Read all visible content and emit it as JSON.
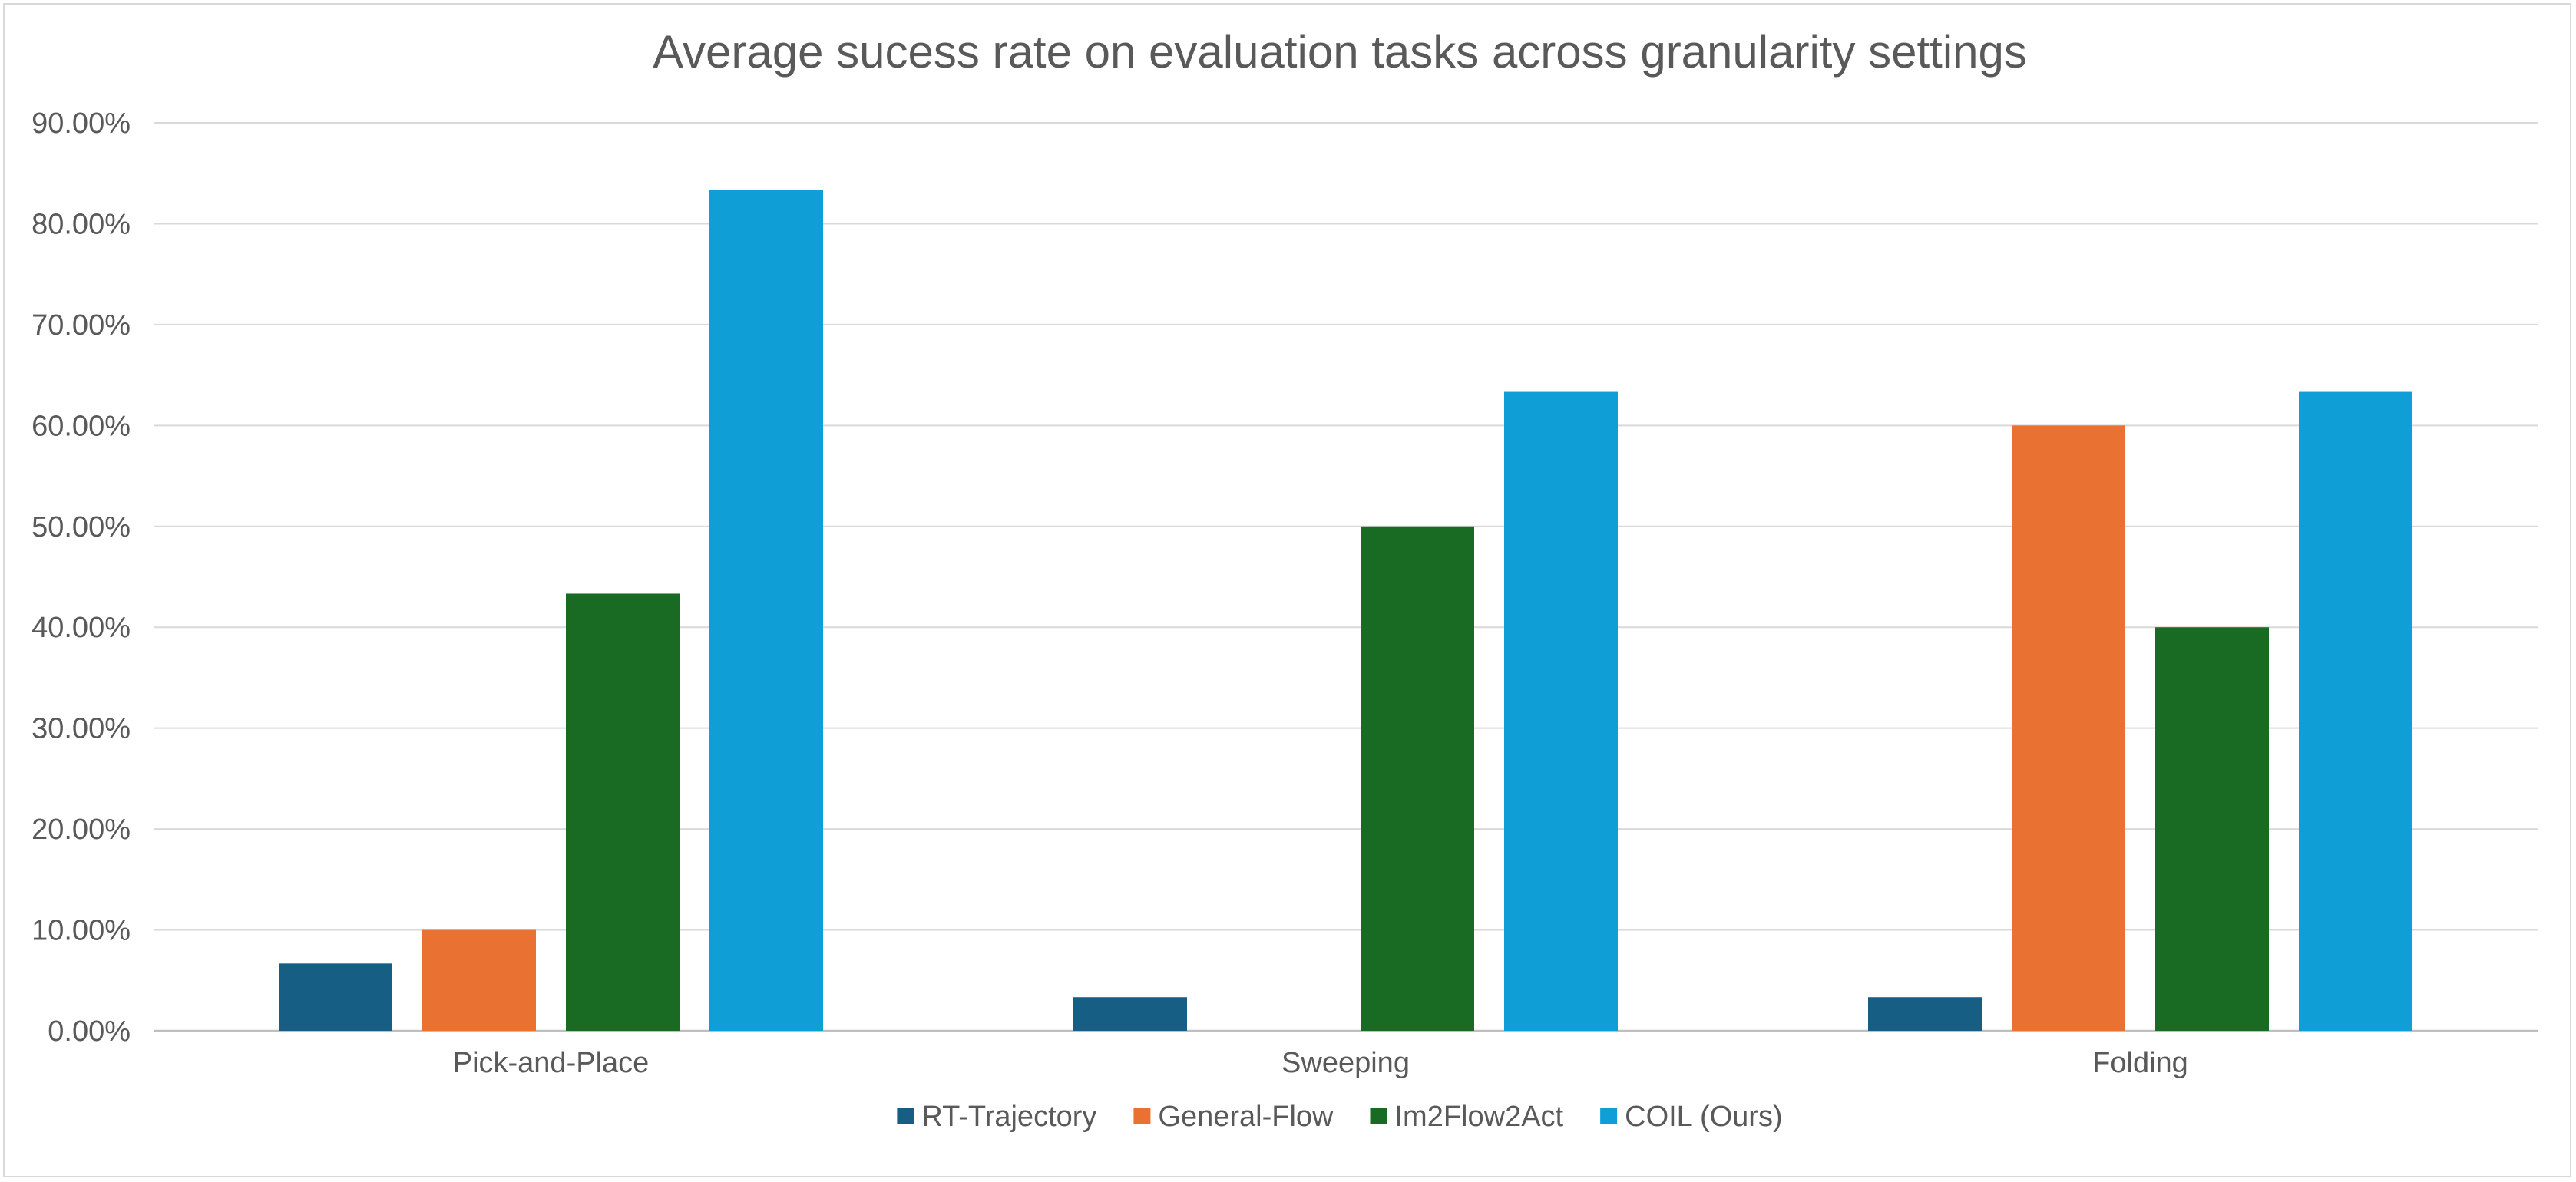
{
  "chart_data": {
    "type": "bar",
    "title": "Average sucess rate on evaluation tasks across granularity settings",
    "categories": [
      "Pick-and-Place",
      "Sweeping",
      "Folding"
    ],
    "series": [
      {
        "name": "RT-Trajectory",
        "color": "#175e85",
        "values": [
          6.67,
          3.33,
          3.33
        ]
      },
      {
        "name": "General-Flow",
        "color": "#e97132",
        "values": [
          10.0,
          0.0,
          60.0
        ]
      },
      {
        "name": "Im2Flow2Act",
        "color": "#196b24",
        "values": [
          43.33,
          50.0,
          40.0
        ]
      },
      {
        "name": "COIL (Ours)",
        "color": "#0f9ed5",
        "values": [
          83.33,
          63.33,
          63.33
        ]
      }
    ],
    "ylim": [
      0,
      90
    ],
    "yticks": [
      "0.00%",
      "10.00%",
      "20.00%",
      "30.00%",
      "40.00%",
      "50.00%",
      "60.00%",
      "70.00%",
      "80.00%",
      "90.00%"
    ],
    "grid": true,
    "legend_position": "bottom"
  }
}
